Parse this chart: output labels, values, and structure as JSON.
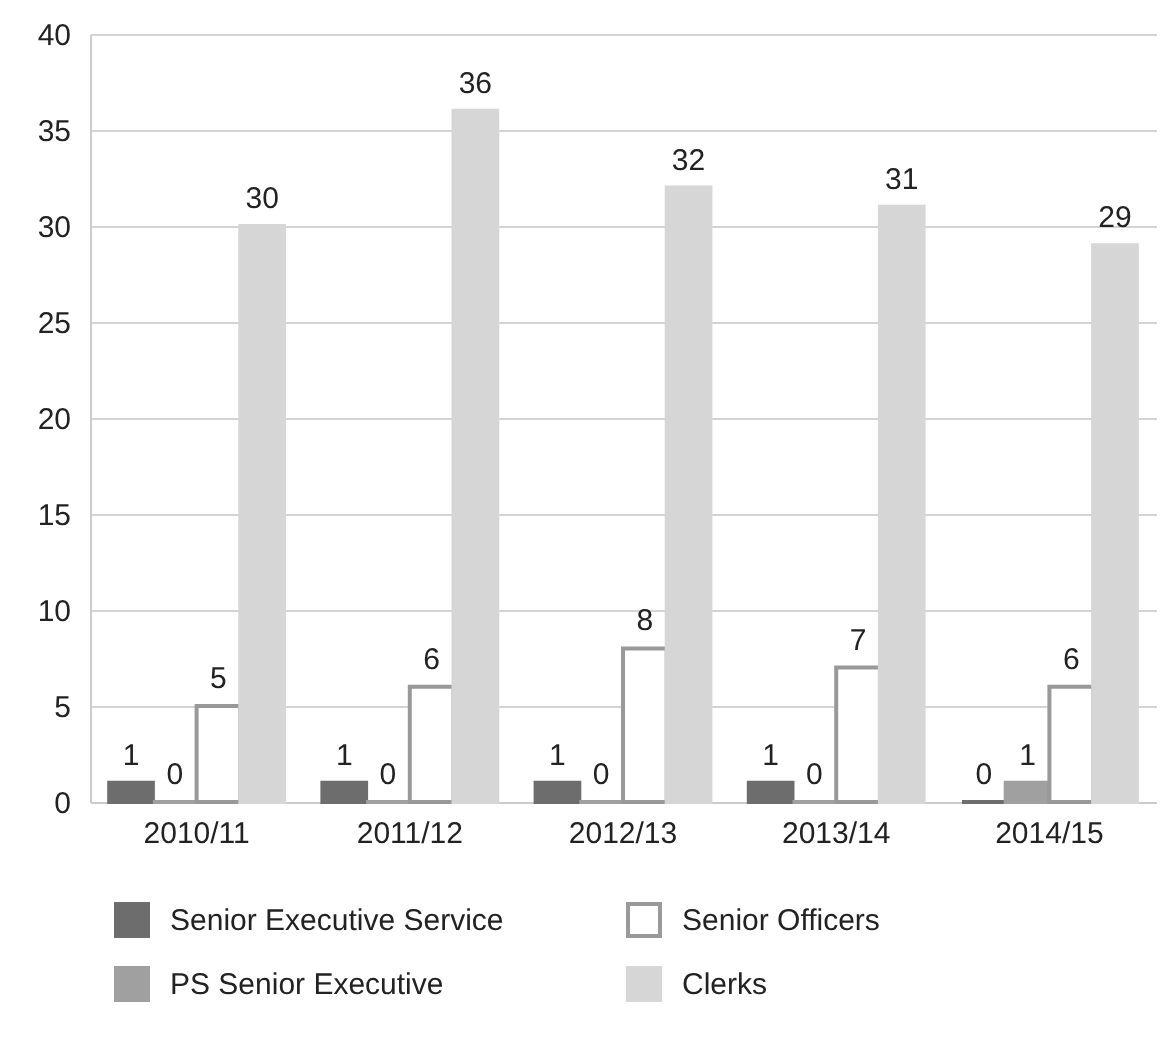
{
  "chart_data": {
    "type": "bar",
    "categories": [
      "2010/11",
      "2011/12",
      "2012/13",
      "2013/14",
      "2014/15"
    ],
    "series": [
      {
        "name": "Senior Executive Service",
        "color": "#6d6d6d",
        "values": [
          1,
          1,
          1,
          1,
          0
        ]
      },
      {
        "name": "PS Senior Executive",
        "color": "#a0a0a0",
        "values": [
          0,
          0,
          0,
          0,
          1
        ]
      },
      {
        "name": "Senior Officers",
        "color": "#ffffff",
        "values": [
          5,
          6,
          8,
          7,
          6
        ]
      },
      {
        "name": "Clerks",
        "color": "#d6d6d6",
        "values": [
          30,
          36,
          32,
          31,
          29
        ]
      }
    ],
    "ylim": [
      0,
      40
    ],
    "yticks": [
      0,
      5,
      10,
      15,
      20,
      25,
      30,
      35,
      40
    ],
    "grid": "y",
    "data_labels": true,
    "legend": "bottom"
  }
}
